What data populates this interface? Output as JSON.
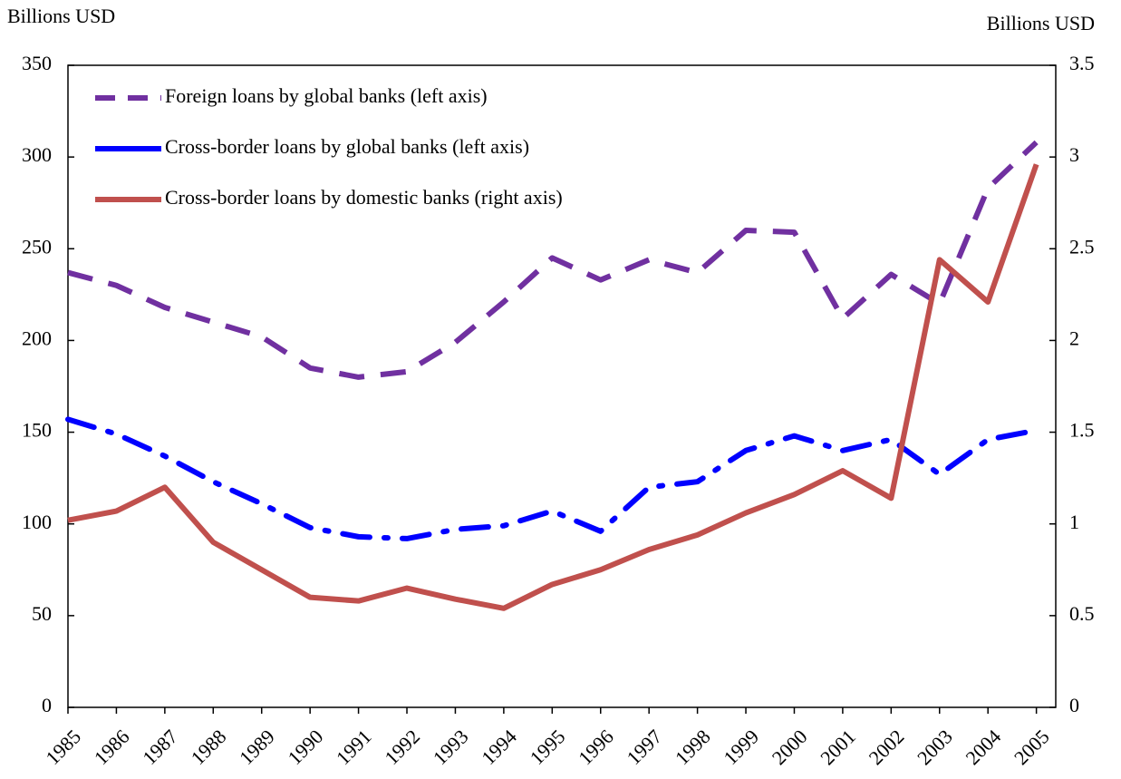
{
  "chart_data": {
    "type": "line",
    "y_label": "Billions USD",
    "y2_label": "Billions USD",
    "categories": [
      "1985",
      "1986",
      "1987",
      "1988",
      "1989",
      "1990",
      "1991",
      "1992",
      "1993",
      "1994",
      "1995",
      "1996",
      "1997",
      "1998",
      "1999",
      "2000",
      "2001",
      "2002",
      "2003",
      "2004",
      "2005"
    ],
    "series": [
      {
        "name": "Foreign loans by global banks (left axis)",
        "color": "#7030a0",
        "style": "dashed",
        "axis": "y",
        "values": [
          237,
          230,
          218,
          210,
          202,
          185,
          180,
          183,
          199,
          221,
          245,
          233,
          244,
          237,
          260,
          259,
          212,
          236,
          220,
          283,
          308
        ]
      },
      {
        "name": "Cross-border loans by global banks (left axis)",
        "color": "#0000ff",
        "style": "dashdot",
        "axis": "y",
        "values": [
          157,
          149,
          137,
          123,
          111,
          98,
          93,
          92,
          97,
          99,
          107,
          96,
          120,
          123,
          140,
          148,
          140,
          146,
          127,
          146,
          151
        ]
      },
      {
        "name": "Cross-border loans by domestic banks (right axis)",
        "color": "#c0504d",
        "style": "solid",
        "axis": "y2",
        "values": [
          1.02,
          1.07,
          1.2,
          0.9,
          0.75,
          0.6,
          0.58,
          0.65,
          0.59,
          0.54,
          0.67,
          0.75,
          0.86,
          0.94,
          1.06,
          1.16,
          1.29,
          1.14,
          2.44,
          2.21,
          2.96
        ]
      }
    ],
    "ylim": [
      0,
      350
    ],
    "yticks": [
      0,
      50,
      100,
      150,
      200,
      250,
      300,
      350
    ],
    "y2lim": [
      0,
      3.5
    ],
    "y2ticks": [
      0,
      0.5,
      1,
      1.5,
      2,
      2.5,
      3,
      3.5
    ],
    "legend": "top-left"
  }
}
